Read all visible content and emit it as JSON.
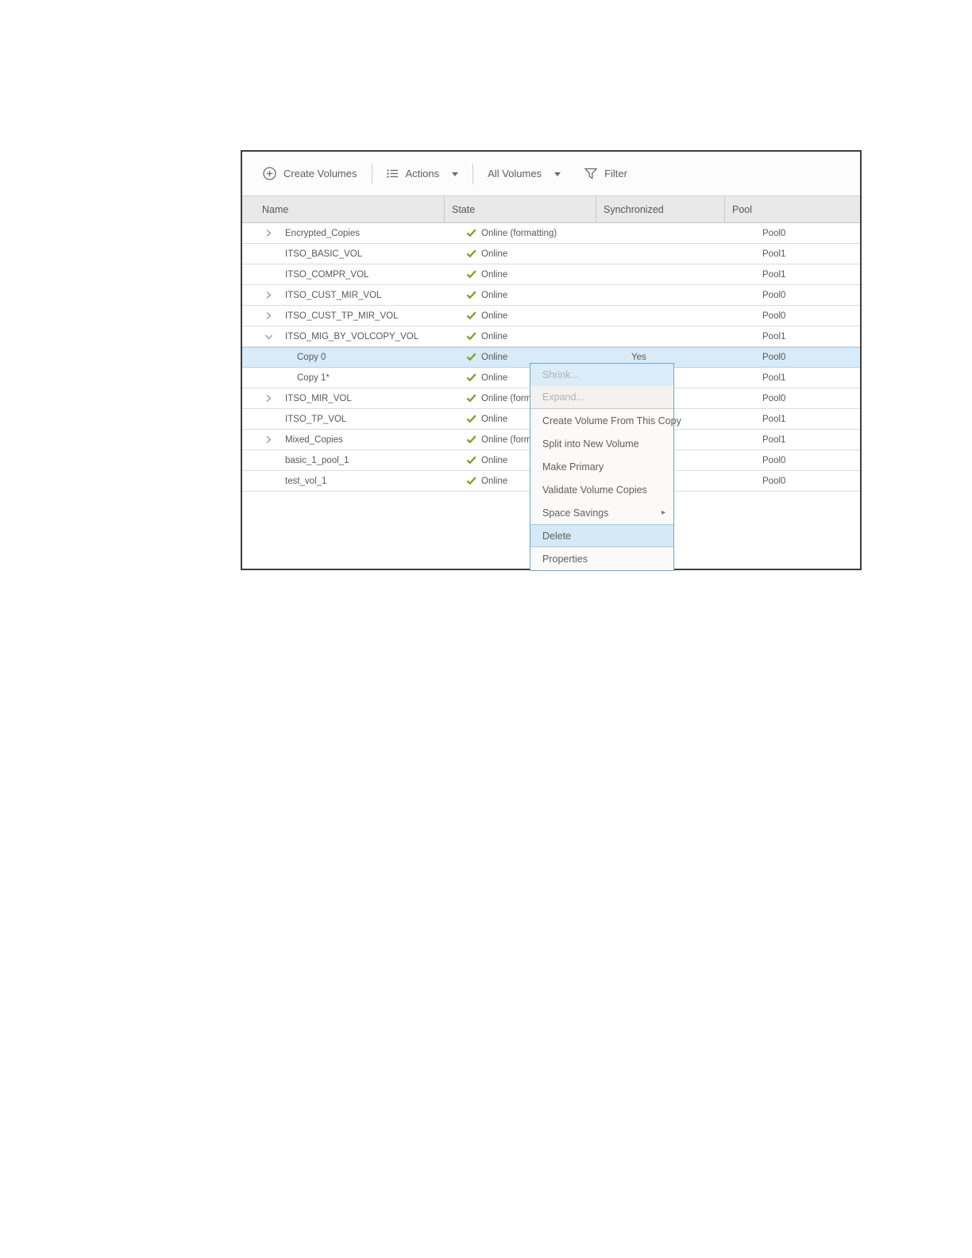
{
  "toolbar": {
    "create_volumes_label": "Create Volumes",
    "actions_label": "Actions",
    "all_volumes_label": "All Volumes",
    "filter_label": "Filter"
  },
  "table": {
    "columns": [
      "Name",
      "State",
      "Synchronized",
      "Pool"
    ],
    "rows": [
      {
        "name": "Encrypted_Copies",
        "expander": "collapsed",
        "indent": 0,
        "state": "Online (formatting)",
        "synchronized": "",
        "pool": "Pool0",
        "selected": false
      },
      {
        "name": "ITSO_BASIC_VOL",
        "expander": "none",
        "indent": 0,
        "state": "Online",
        "synchronized": "",
        "pool": "Pool1",
        "selected": false
      },
      {
        "name": "ITSO_COMPR_VOL",
        "expander": "none",
        "indent": 0,
        "state": "Online",
        "synchronized": "",
        "pool": "Pool1",
        "selected": false
      },
      {
        "name": "ITSO_CUST_MIR_VOL",
        "expander": "collapsed",
        "indent": 0,
        "state": "Online",
        "synchronized": "",
        "pool": "Pool0",
        "selected": false
      },
      {
        "name": "ITSO_CUST_TP_MIR_VOL",
        "expander": "collapsed",
        "indent": 0,
        "state": "Online",
        "synchronized": "",
        "pool": "Pool0",
        "selected": false
      },
      {
        "name": "ITSO_MIG_BY_VOLCOPY_VOL",
        "expander": "expanded",
        "indent": 0,
        "state": "Online",
        "synchronized": "",
        "pool": "Pool1",
        "selected": false
      },
      {
        "name": "Copy 0",
        "expander": "none",
        "indent": 1,
        "state": "Online",
        "synchronized": "Yes",
        "pool": "Pool0",
        "selected": true
      },
      {
        "name": "Copy 1*",
        "expander": "none",
        "indent": 1,
        "state": "Online",
        "synchronized": "",
        "pool": "Pool1",
        "selected": false
      },
      {
        "name": "ITSO_MIR_VOL",
        "expander": "collapsed",
        "indent": 0,
        "state": "Online (formatting)",
        "synchronized": "",
        "pool": "Pool0",
        "selected": false
      },
      {
        "name": "ITSO_TP_VOL",
        "expander": "none",
        "indent": 0,
        "state": "Online",
        "synchronized": "",
        "pool": "Pool1",
        "selected": false
      },
      {
        "name": "Mixed_Copies",
        "expander": "collapsed",
        "indent": 0,
        "state": "Online (formatting)",
        "synchronized": "",
        "pool": "Pool1",
        "selected": false
      },
      {
        "name": "basic_1_pool_1",
        "expander": "none",
        "indent": 0,
        "state": "Online",
        "synchronized": "",
        "pool": "Pool0",
        "selected": false
      },
      {
        "name": "test_vol_1",
        "expander": "none",
        "indent": 0,
        "state": "Online",
        "synchronized": "",
        "pool": "Pool0",
        "selected": false
      }
    ]
  },
  "context_menu": {
    "items": [
      {
        "label": "Shrink...",
        "type": "item",
        "disabled": true,
        "style": "shrink-bg"
      },
      {
        "label": "Expand...",
        "type": "item",
        "disabled": true,
        "style": "expand-bg"
      },
      {
        "type": "separator"
      },
      {
        "label": "Create Volume From This Copy",
        "type": "item"
      },
      {
        "label": "Split into New Volume",
        "type": "item"
      },
      {
        "label": "Make Primary",
        "type": "item"
      },
      {
        "label": "Validate Volume Copies",
        "type": "item"
      },
      {
        "label": "Space Savings",
        "type": "item",
        "submenu": true
      },
      {
        "label": "Delete",
        "type": "item",
        "highlighted": true
      },
      {
        "label": "Properties",
        "type": "item"
      }
    ]
  },
  "colors": {
    "status_online_check": "#7ba32e",
    "selected_row_bg": "#d9ebf8",
    "menu_border": "#64a9d3",
    "menu_highlight_bg": "#d5e9f7",
    "header_bg": "#e9e9e9",
    "panel_border": "#3d3d3d"
  }
}
